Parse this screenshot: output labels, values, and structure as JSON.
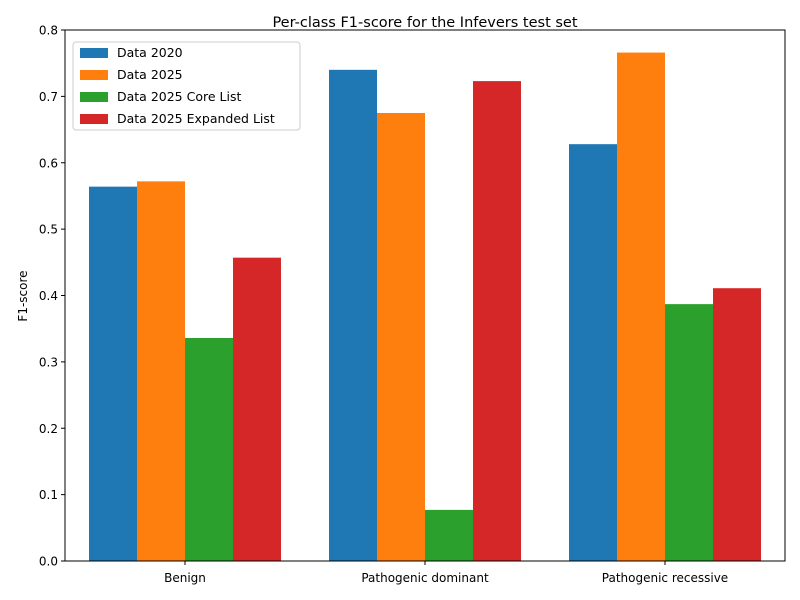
{
  "chart_data": {
    "type": "bar",
    "title": "Per-class F1-score for the Infevers test set",
    "xlabel": "",
    "ylabel": "F1-score",
    "categories": [
      "Benign",
      "Pathogenic dominant",
      "Pathogenic recessive"
    ],
    "series": [
      {
        "name": "Data 2020",
        "color": "#1f77b4",
        "values": [
          0.564,
          0.74,
          0.628
        ]
      },
      {
        "name": "Data 2025",
        "color": "#ff7f0e",
        "values": [
          0.572,
          0.675,
          0.766
        ]
      },
      {
        "name": "Data 2025 Core List",
        "color": "#2ca02c",
        "values": [
          0.336,
          0.077,
          0.387
        ]
      },
      {
        "name": "Data 2025 Expanded List",
        "color": "#d62728",
        "values": [
          0.457,
          0.723,
          0.411
        ]
      }
    ],
    "ylim": [
      0,
      0.8
    ],
    "yticks": [
      "0.0",
      "0.1",
      "0.2",
      "0.3",
      "0.4",
      "0.5",
      "0.6",
      "0.7",
      "0.8"
    ],
    "grid": false,
    "legend_position": "top-left"
  }
}
